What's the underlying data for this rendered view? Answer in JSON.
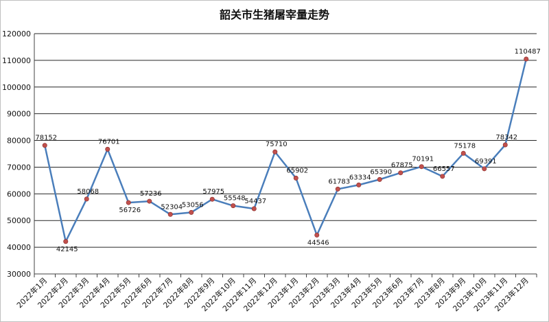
{
  "chart_data": {
    "type": "line",
    "title": "韶关市生猪屠宰量走势",
    "categories": [
      "2022年1月",
      "2022年2月",
      "2022年3月",
      "2022年4月",
      "2022年5月",
      "2022年6月",
      "2022年7月",
      "2022年8月",
      "2022年9月",
      "2022年10月",
      "2022年11月",
      "2022年12月",
      "2023年1月",
      "2023年2月",
      "2023年3月",
      "2023年4月",
      "2023年5月",
      "2023年6月",
      "2023年7月",
      "2023年8月",
      "2023年9月",
      "2023年10月",
      "2023年11月",
      "2023年12月"
    ],
    "values": [
      78152,
      42145,
      58068,
      76701,
      56726,
      57236,
      52304,
      53056,
      57975,
      55548,
      54437,
      75710,
      65902,
      44546,
      61783,
      63334,
      65390,
      67875,
      70191,
      66557,
      75178,
      69391,
      78342,
      110487
    ],
    "yticks": [
      30000,
      40000,
      50000,
      60000,
      70000,
      80000,
      90000,
      100000,
      110000,
      120000
    ],
    "ylim": [
      30000,
      120000
    ],
    "grid": true,
    "line_color": "#4a7ebb",
    "marker_color": "#c0504d"
  }
}
